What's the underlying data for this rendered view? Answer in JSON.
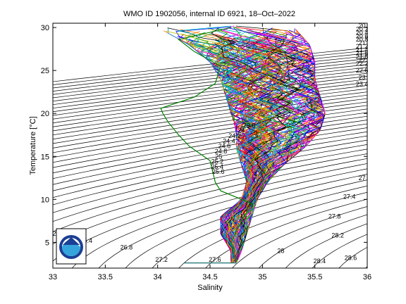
{
  "chart_data": {
    "type": "line",
    "title": "WMO ID 1902056, internal ID 6921, 18–Oct–2022",
    "xlabel": "Salinity",
    "ylabel": "Temperature [°C]",
    "xlim": [
      33,
      36
    ],
    "ylim": [
      2,
      30.5
    ],
    "xticks": [
      "33",
      "33.5",
      "34",
      "34.5",
      "35",
      "35.5",
      "36"
    ],
    "yticks": [
      "5",
      "10",
      "15",
      "20",
      "25",
      "30"
    ],
    "grid": false,
    "legend": "none",
    "isopycnal_labels": [
      "20",
      "20.2",
      "20.4",
      "20.6",
      "20.8",
      "21",
      "21.2",
      "21.4",
      "21.6",
      "21.8",
      "22",
      "22.2",
      "22.6",
      "23",
      "23.4",
      "23.8",
      "24",
      "24.2",
      "24.4",
      "24.6",
      "24.8",
      "25",
      "25.2",
      "25.4",
      "25.6",
      "26",
      "26.4",
      "26.8",
      "27",
      "27.2",
      "27.4",
      "27.6",
      "27.8",
      "28",
      "28.2",
      "28.4",
      "28.6"
    ],
    "profile_envelope": [
      {
        "t": 30.0,
        "s_min": 34.0,
        "s_max": 35.3
      },
      {
        "t": 28.0,
        "s_min": 34.3,
        "s_max": 35.45
      },
      {
        "t": 26.0,
        "s_min": 34.5,
        "s_max": 35.5
      },
      {
        "t": 24.0,
        "s_min": 34.6,
        "s_max": 35.5
      },
      {
        "t": 22.0,
        "s_min": 34.65,
        "s_max": 35.55
      },
      {
        "t": 20.0,
        "s_min": 34.7,
        "s_max": 35.6
      },
      {
        "t": 18.0,
        "s_min": 34.75,
        "s_max": 35.55
      },
      {
        "t": 16.0,
        "s_min": 34.75,
        "s_max": 35.4
      },
      {
        "t": 14.0,
        "s_min": 34.8,
        "s_max": 35.2
      },
      {
        "t": 12.0,
        "s_min": 34.85,
        "s_max": 35.05
      },
      {
        "t": 10.0,
        "s_min": 34.8,
        "s_max": 34.95
      },
      {
        "t": 8.0,
        "s_min": 34.6,
        "s_max": 34.9
      },
      {
        "t": 6.0,
        "s_min": 34.6,
        "s_max": 34.85
      },
      {
        "t": 4.0,
        "s_min": 34.7,
        "s_max": 34.8
      },
      {
        "t": 2.5,
        "s_min": 34.7,
        "s_max": 34.75
      }
    ],
    "highlighted_profile": {
      "color": "#008000",
      "points": [
        {
          "s": 34.7,
          "t": 30.0
        },
        {
          "s": 34.2,
          "t": 28.6
        },
        {
          "s": 34.35,
          "t": 27.2
        },
        {
          "s": 34.6,
          "t": 25.5
        },
        {
          "s": 34.55,
          "t": 23.5
        },
        {
          "s": 34.35,
          "t": 21.9
        },
        {
          "s": 34.03,
          "t": 20.6
        },
        {
          "s": 34.05,
          "t": 20.0
        },
        {
          "s": 34.1,
          "t": 19.0
        },
        {
          "s": 34.2,
          "t": 17.5
        },
        {
          "s": 34.3,
          "t": 16.2
        },
        {
          "s": 34.5,
          "t": 14.5
        },
        {
          "s": 34.55,
          "t": 12.0
        },
        {
          "s": 34.6,
          "t": 11.0
        },
        {
          "s": 34.9,
          "t": 9.5
        },
        {
          "s": 34.8,
          "t": 7.5
        },
        {
          "s": 34.7,
          "t": 5.0
        },
        {
          "s": 34.75,
          "t": 2.6
        }
      ]
    }
  },
  "logo": {
    "label": "NOAA",
    "colors": {
      "outer": "#1b3f94",
      "wave": "#35a4dc"
    }
  }
}
